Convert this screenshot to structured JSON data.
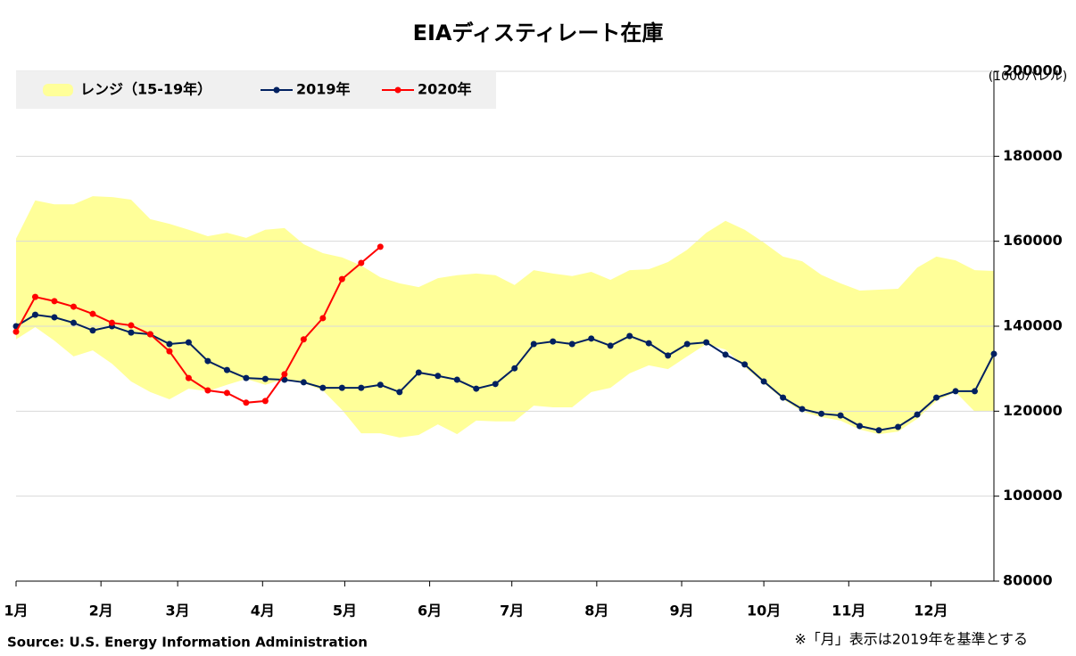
{
  "chart_data": {
    "type": "line",
    "title": "EIAディスティレート在庫",
    "y_unit": "(1000バレル)",
    "source": "Source: U.S. Energy Information Administration",
    "note": "※「月」表示は2019年を基準とする",
    "grid": true,
    "legend": "upper left",
    "xlim": [
      0,
      357
    ],
    "xticks": [
      {
        "value": 0,
        "label": "1月"
      },
      {
        "value": 31,
        "label": "2月"
      },
      {
        "value": 59,
        "label": "3月"
      },
      {
        "value": 90,
        "label": "4月"
      },
      {
        "value": 120,
        "label": "5月"
      },
      {
        "value": 151,
        "label": "6月"
      },
      {
        "value": 181,
        "label": "7月"
      },
      {
        "value": 212,
        "label": "8月"
      },
      {
        "value": 243,
        "label": "9月"
      },
      {
        "value": 273,
        "label": "10月"
      },
      {
        "value": 304,
        "label": "11月"
      },
      {
        "value": 334,
        "label": "12月"
      }
    ],
    "ylim": [
      80000,
      200000
    ],
    "yticks": [
      80000,
      100000,
      120000,
      140000,
      160000,
      180000,
      200000
    ],
    "x": [
      0,
      7,
      14,
      21,
      28,
      35,
      42,
      49,
      56,
      63,
      70,
      77,
      84,
      91,
      98,
      105,
      112,
      119,
      126,
      133,
      140,
      147,
      154,
      161,
      168,
      175,
      182,
      189,
      196,
      203,
      210,
      217,
      224,
      231,
      238,
      245,
      252,
      259,
      266,
      273,
      280,
      287,
      294,
      301,
      308,
      315,
      322,
      329,
      336,
      343,
      350,
      357
    ],
    "band": {
      "name": "レンジ（15-19年）",
      "color": "#ffff99",
      "upper": [
        160600,
        169600,
        168700,
        168700,
        170600,
        170400,
        169800,
        165200,
        164100,
        162700,
        161200,
        162000,
        160800,
        162700,
        163100,
        159300,
        157200,
        156200,
        154300,
        151500,
        150100,
        149200,
        151300,
        152000,
        152400,
        152000,
        149700,
        153200,
        152400,
        151800,
        152800,
        150900,
        153200,
        153400,
        155100,
        158000,
        162000,
        164800,
        162700,
        159700,
        156400,
        155300,
        152100,
        150100,
        148400,
        148600,
        148800,
        153800,
        156400,
        155500,
        153200,
        153000
      ],
      "lower": [
        136900,
        139800,
        136600,
        132900,
        134300,
        131200,
        127000,
        124500,
        122800,
        125300,
        124700,
        126200,
        127600,
        126200,
        127600,
        126600,
        124900,
        120300,
        114800,
        114800,
        113800,
        114400,
        116900,
        114600,
        117800,
        117600,
        117600,
        121300,
        120900,
        120900,
        124500,
        125500,
        128900,
        130800,
        129900,
        132900,
        135800,
        134500,
        130400,
        126600,
        122800,
        119900,
        118600,
        117800,
        115700,
        114600,
        115200,
        118200,
        122400,
        124500,
        119900,
        120100
      ]
    },
    "series": [
      {
        "name": "2019年",
        "color": "#002060",
        "x": [
          0,
          7,
          14,
          21,
          28,
          35,
          42,
          49,
          56,
          63,
          70,
          77,
          84,
          91,
          98,
          105,
          112,
          119,
          126,
          133,
          140,
          147,
          154,
          161,
          168,
          175,
          182,
          189,
          196,
          203,
          210,
          217,
          224,
          231,
          238,
          245,
          252,
          259,
          266,
          273,
          280,
          287,
          294,
          301,
          308,
          315,
          322,
          329,
          336,
          343,
          350,
          357
        ],
        "values": [
          140000,
          142700,
          142100,
          140800,
          139000,
          140000,
          138500,
          138100,
          135800,
          136200,
          131800,
          129700,
          127800,
          127600,
          127400,
          126800,
          125500,
          125500,
          125500,
          126200,
          124500,
          129100,
          128300,
          127400,
          125300,
          126400,
          130100,
          135800,
          136400,
          135800,
          137100,
          135400,
          137700,
          136000,
          133100,
          135800,
          136200,
          133300,
          131000,
          127000,
          123200,
          120500,
          119400,
          119000,
          116500,
          115500,
          116300,
          119200,
          123200,
          124700,
          124700,
          133500
        ]
      },
      {
        "name": "2020年",
        "color": "#ff0000",
        "x": [
          0,
          7,
          14,
          21,
          28,
          35,
          42,
          49,
          56,
          63,
          70,
          77,
          84,
          91,
          98,
          105,
          112,
          119,
          126,
          133
        ],
        "values": [
          138700,
          146900,
          145900,
          144600,
          142900,
          140800,
          140200,
          138100,
          134100,
          127800,
          124900,
          124300,
          122000,
          122400,
          128700,
          136900,
          141900,
          151100,
          154900,
          158700
        ]
      }
    ]
  }
}
